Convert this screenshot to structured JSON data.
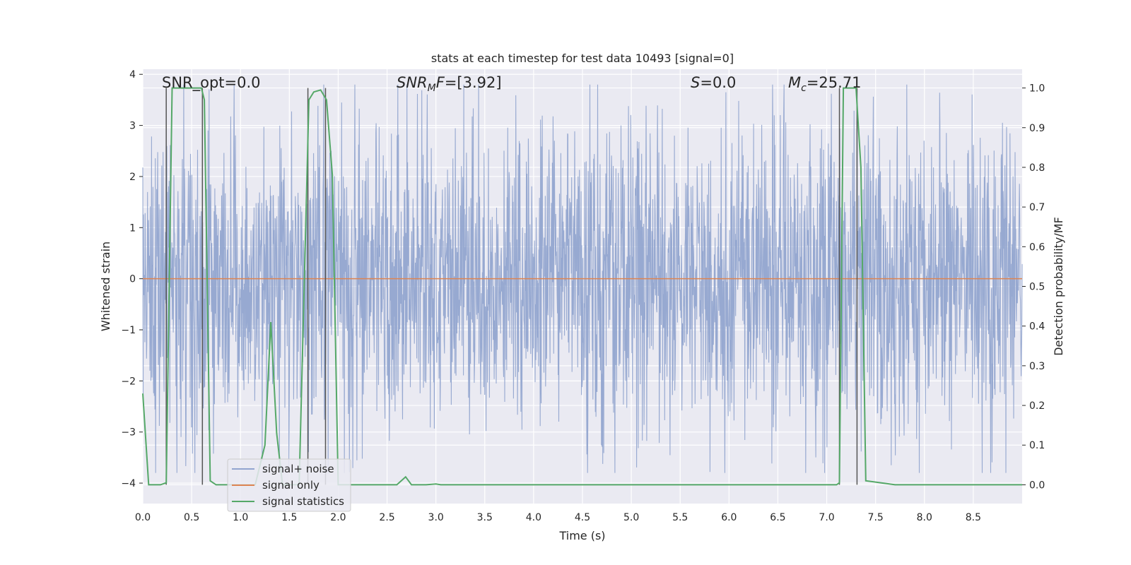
{
  "chart_data": {
    "type": "line",
    "title": "stats at each timestep for test data 10493 [signal=0]",
    "xlabel": "Time (s)",
    "ylabel": "Whitened strain",
    "y2label": "Detection probability/MF",
    "xlim": [
      0,
      9.0
    ],
    "ylim": [
      -4.4,
      4.1
    ],
    "y2lim": [
      -0.0473,
      1.0473
    ],
    "grid": true,
    "legend_position": "lower-left",
    "x_ticks": [
      "0.0",
      "0.5",
      "1.0",
      "1.5",
      "2.0",
      "2.5",
      "3.0",
      "3.5",
      "4.0",
      "4.5",
      "5.0",
      "5.5",
      "6.0",
      "6.5",
      "7.0",
      "7.5",
      "8.0",
      "8.5"
    ],
    "y_ticks": [
      "−4",
      "−3",
      "−2",
      "−1",
      "0",
      "1",
      "2",
      "3",
      "4"
    ],
    "y2_ticks": [
      "0.0",
      "0.1",
      "0.2",
      "0.3",
      "0.4",
      "0.5",
      "0.6",
      "0.7",
      "0.8",
      "0.9",
      "1.0"
    ],
    "annotations": {
      "snr_opt": "SNR_opt=0.0",
      "snr_mf_main": "SNR",
      "snr_mf_sub": "M",
      "snr_mf_f": "F",
      "snr_mf_value": "=[3.92]",
      "s_symbol": "S",
      "s_value": "=0.0",
      "mc_main": "M",
      "mc_sub": "c",
      "mc_value": "=25.71"
    },
    "series": [
      {
        "name": "signal+ noise",
        "color": "#92a5cf",
        "axis": "left",
        "noise_envelope": {
          "typical_amplitude": 2.0,
          "max_amplitude": 3.8
        },
        "x_range": [
          0,
          9.0
        ]
      },
      {
        "name": "signal only",
        "color": "#dd8452",
        "axis": "left",
        "x": [
          0,
          9.0
        ],
        "y": [
          0,
          0
        ]
      },
      {
        "name": "signal statistics",
        "color": "#55a868",
        "axis": "right",
        "x": [
          0.0,
          0.06,
          0.18,
          0.24,
          0.3,
          0.6,
          0.63,
          0.69,
          0.75,
          1.15,
          1.25,
          1.31,
          1.37,
          1.43,
          1.6,
          1.7,
          1.75,
          1.82,
          1.88,
          1.94,
          2.0,
          2.6,
          2.69,
          2.75,
          2.9,
          3.0,
          3.05,
          5.6,
          7.1,
          7.13,
          7.17,
          7.3,
          7.35,
          7.4,
          7.7,
          9.0
        ],
        "y": [
          0.23,
          0.0,
          0.0,
          0.005,
          1.0,
          1.0,
          0.97,
          0.01,
          0.0,
          0.0,
          0.1,
          0.41,
          0.13,
          0.0,
          0.0,
          0.97,
          0.99,
          0.995,
          0.97,
          0.78,
          0.0,
          0.0,
          0.02,
          0.0,
          0.0,
          0.002,
          0.0,
          0.0,
          0.0,
          0.005,
          1.0,
          1.0,
          0.8,
          0.01,
          0.0,
          0.0
        ]
      }
    ],
    "vertical_markers": {
      "color": "#555555",
      "x": [
        0.24,
        0.61,
        1.69,
        1.87,
        7.13,
        7.31
      ]
    }
  }
}
